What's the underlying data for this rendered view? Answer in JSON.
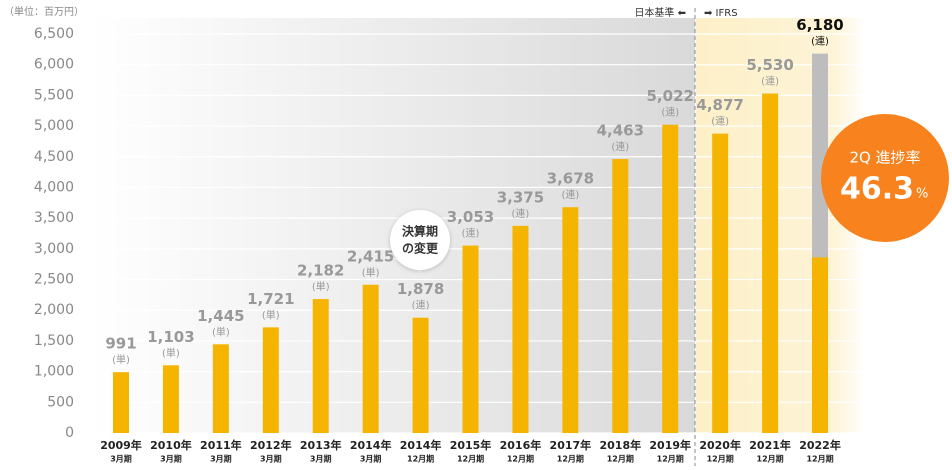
{
  "chart_data": {
    "type": "bar",
    "unit_note": "（単位：百万円）",
    "standard_left": "日本基準 ⬅",
    "standard_right": "➡ IFRS",
    "callout": [
      "決算期",
      "の変更"
    ],
    "categories": [
      "2009年",
      "2010年",
      "2011年",
      "2012年",
      "2013年",
      "2014年",
      "2014年",
      "2015年",
      "2016年",
      "2017年",
      "2018年",
      "2019年",
      "2020年",
      "2021年",
      "2022年"
    ],
    "periods": [
      "3月期",
      "3月期",
      "3月期",
      "3月期",
      "3月期",
      "3月期",
      "12月期",
      "12月期",
      "12月期",
      "12月期",
      "12月期",
      "12月期",
      "12月期",
      "12月期",
      "12月期"
    ],
    "values": [
      991,
      1103,
      1445,
      1721,
      2182,
      2415,
      1878,
      3053,
      3375,
      3678,
      4463,
      5022,
      4877,
      5530,
      6180
    ],
    "value_labels": [
      "991",
      "1,103",
      "1,445",
      "1,721",
      "2,182",
      "2,415",
      "1,878",
      "3,053",
      "3,375",
      "3,678",
      "4,463",
      "5,022",
      "4,877",
      "5,530",
      "6,180"
    ],
    "notes": [
      "(単)",
      "(単)",
      "(単)",
      "(単)",
      "(単)",
      "(単)",
      "(連)",
      "(連)",
      "(連)",
      "(連)",
      "(連)",
      "(連)",
      "(連)",
      "(連)",
      "(連)"
    ],
    "color": "#f5b400",
    "forecast_color": "#bdbdbd",
    "progress": {
      "label": "2Q 進捗率",
      "rate": 46.3,
      "unit": "%"
    },
    "ylim": [
      0,
      6500
    ],
    "yticks": [
      0,
      500,
      {
        "value": 1000,
        "label": "1,000"
      },
      {
        "value": 1500,
        "label": "1,500"
      },
      {
        "value": 2000,
        "label": "2,000"
      },
      {
        "value": 2500,
        "label": "2,500"
      },
      {
        "value": 3000,
        "label": "3,000"
      },
      {
        "value": 3500,
        "label": "3,500"
      },
      {
        "value": 4000,
        "label": "4,000"
      },
      {
        "value": 4500,
        "label": "4,500"
      },
      {
        "value": 5000,
        "label": "5,000"
      },
      {
        "value": 5500,
        "label": "5,500"
      },
      {
        "value": 6000,
        "label": "6,000"
      },
      {
        "value": 6500,
        "label": "6,500"
      }
    ],
    "grid": true
  }
}
